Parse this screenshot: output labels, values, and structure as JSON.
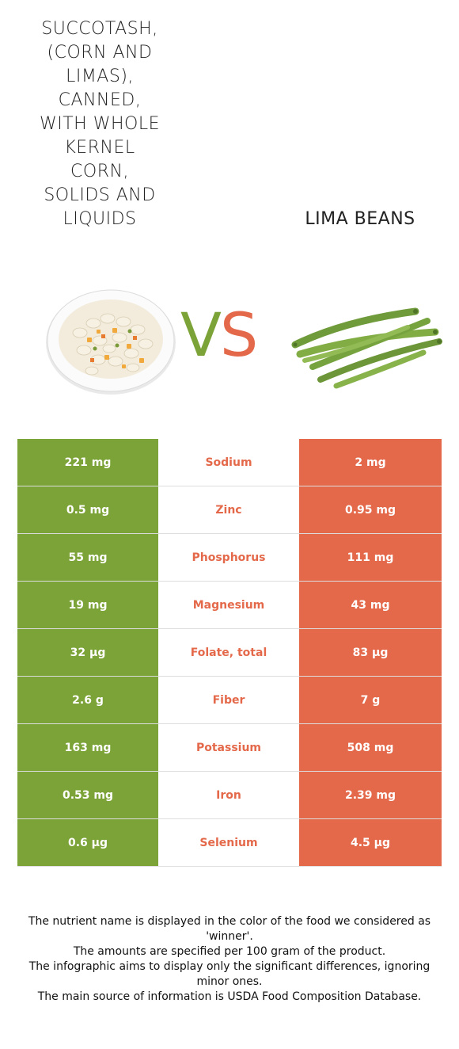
{
  "colors": {
    "left": "#7ca337",
    "right": "#e4694a"
  },
  "left_food": {
    "title_lines": [
      "Succotash,",
      "(corn and",
      "limas),",
      "canned,",
      "with whole",
      "kernel",
      "corn,",
      "solids and",
      "liquids"
    ],
    "image_icon": "succotash-plate-icon"
  },
  "right_food": {
    "title": "Lima beans",
    "image_icon": "green-beans-icon"
  },
  "vs": {
    "v": "V",
    "s": "S"
  },
  "rows": [
    {
      "left": "221 mg",
      "nutrient": "Sodium",
      "right": "2 mg",
      "winner": "right"
    },
    {
      "left": "0.5 mg",
      "nutrient": "Zinc",
      "right": "0.95 mg",
      "winner": "right"
    },
    {
      "left": "55 mg",
      "nutrient": "Phosphorus",
      "right": "111 mg",
      "winner": "right"
    },
    {
      "left": "19 mg",
      "nutrient": "Magnesium",
      "right": "43 mg",
      "winner": "right"
    },
    {
      "left": "32 µg",
      "nutrient": "Folate, total",
      "right": "83 µg",
      "winner": "right"
    },
    {
      "left": "2.6 g",
      "nutrient": "Fiber",
      "right": "7 g",
      "winner": "right"
    },
    {
      "left": "163 mg",
      "nutrient": "Potassium",
      "right": "508 mg",
      "winner": "right"
    },
    {
      "left": "0.53 mg",
      "nutrient": "Iron",
      "right": "2.39 mg",
      "winner": "right"
    },
    {
      "left": "0.6 µg",
      "nutrient": "Selenium",
      "right": "4.5 µg",
      "winner": "right"
    }
  ],
  "footer": [
    "The nutrient name is displayed in the color of the food we considered as 'winner'.",
    "The amounts are specified per 100 gram of the product.",
    "The infographic aims to display only the significant differences, ignoring minor ones.",
    "The main source of information is USDA Food Composition Database."
  ]
}
